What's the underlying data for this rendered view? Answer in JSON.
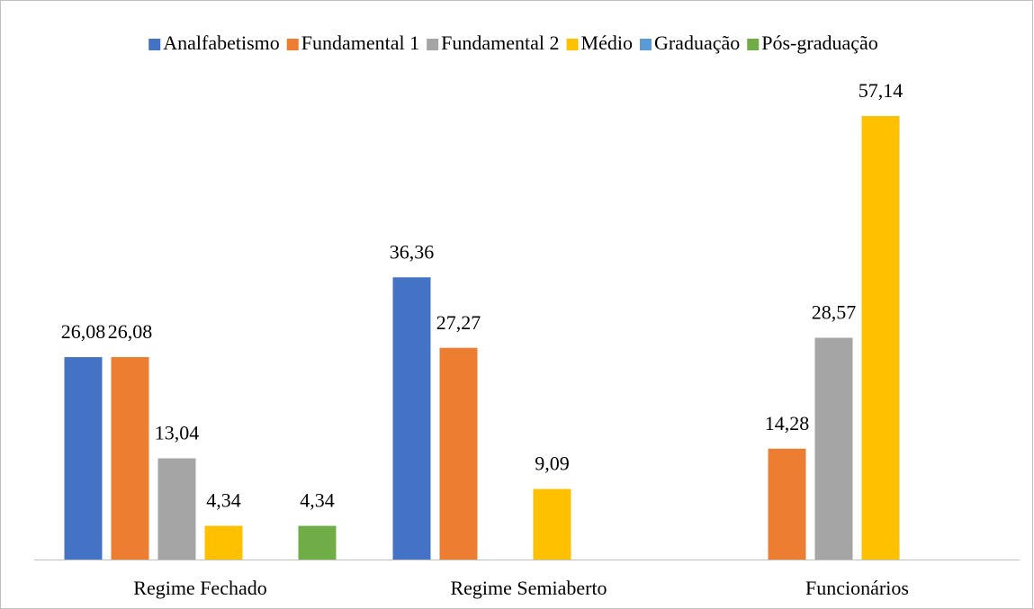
{
  "chart_data": {
    "type": "bar",
    "categories": [
      "Regime Fechado",
      "Regime Semiaberto",
      "Funcionários"
    ],
    "series": [
      {
        "name": "Analfabetismo",
        "color": "#4472c4",
        "values": [
          26.08,
          36.36,
          null
        ],
        "value_labels": [
          "26,08",
          "36,36",
          null
        ]
      },
      {
        "name": "Fundamental 1",
        "color": "#ed7d31",
        "values": [
          26.08,
          27.27,
          14.28
        ],
        "value_labels": [
          "26,08",
          "27,27",
          "14,28"
        ]
      },
      {
        "name": "Fundamental 2",
        "color": "#a5a5a5",
        "values": [
          13.04,
          null,
          28.57
        ],
        "value_labels": [
          "13,04",
          null,
          "28,57"
        ]
      },
      {
        "name": "Médio",
        "color": "#ffc000",
        "values": [
          4.34,
          9.09,
          57.14
        ],
        "value_labels": [
          "4,34",
          "9,09",
          "57,14"
        ]
      },
      {
        "name": "Graduação",
        "color": "#5b9bd5",
        "values": [
          null,
          null,
          null
        ],
        "value_labels": [
          null,
          null,
          null
        ]
      },
      {
        "name": "Pós-graduação",
        "color": "#70ad47",
        "values": [
          4.34,
          null,
          null
        ],
        "value_labels": [
          "4,34",
          null,
          null
        ]
      }
    ],
    "legend": "top"
  }
}
